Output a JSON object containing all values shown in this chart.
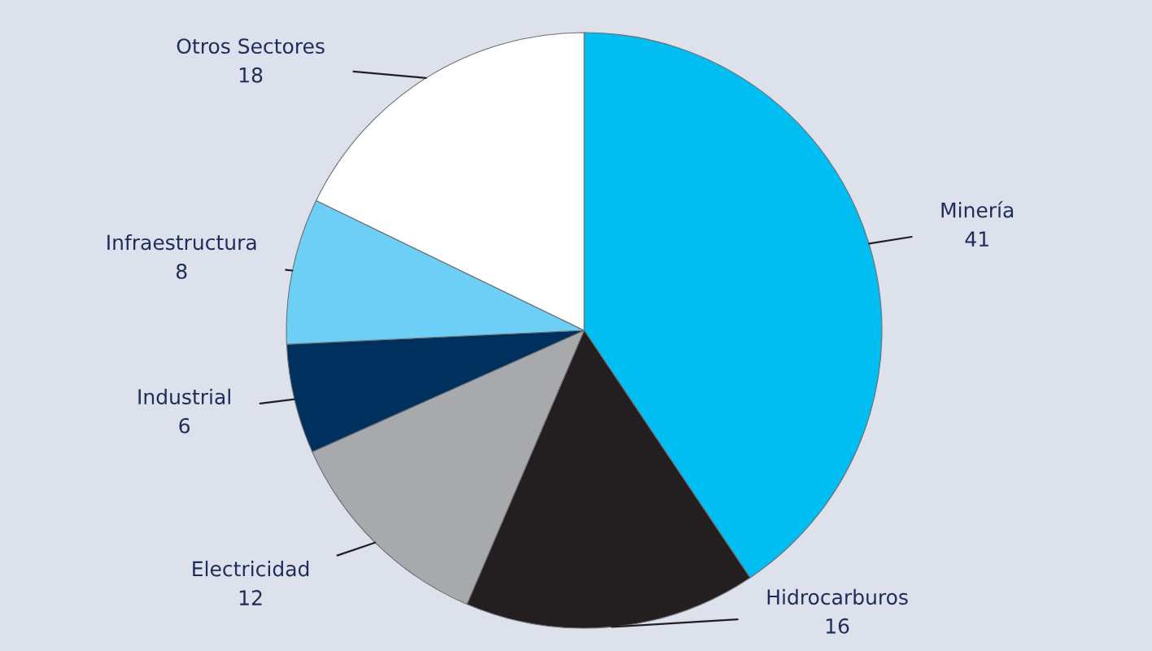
{
  "chart_data": {
    "type": "pie",
    "categories": [
      "Minería",
      "Hidrocarburos",
      "Electricidad",
      "Industrial",
      "Infraestructura",
      "Otros Sectores"
    ],
    "values": [
      41,
      16,
      12,
      6,
      8,
      18
    ],
    "colors": [
      "#00bef2",
      "#231f20",
      "#a7a9ac",
      "#00305e",
      "#6dcff6",
      "#ffffff"
    ],
    "data_labels": true
  }
}
